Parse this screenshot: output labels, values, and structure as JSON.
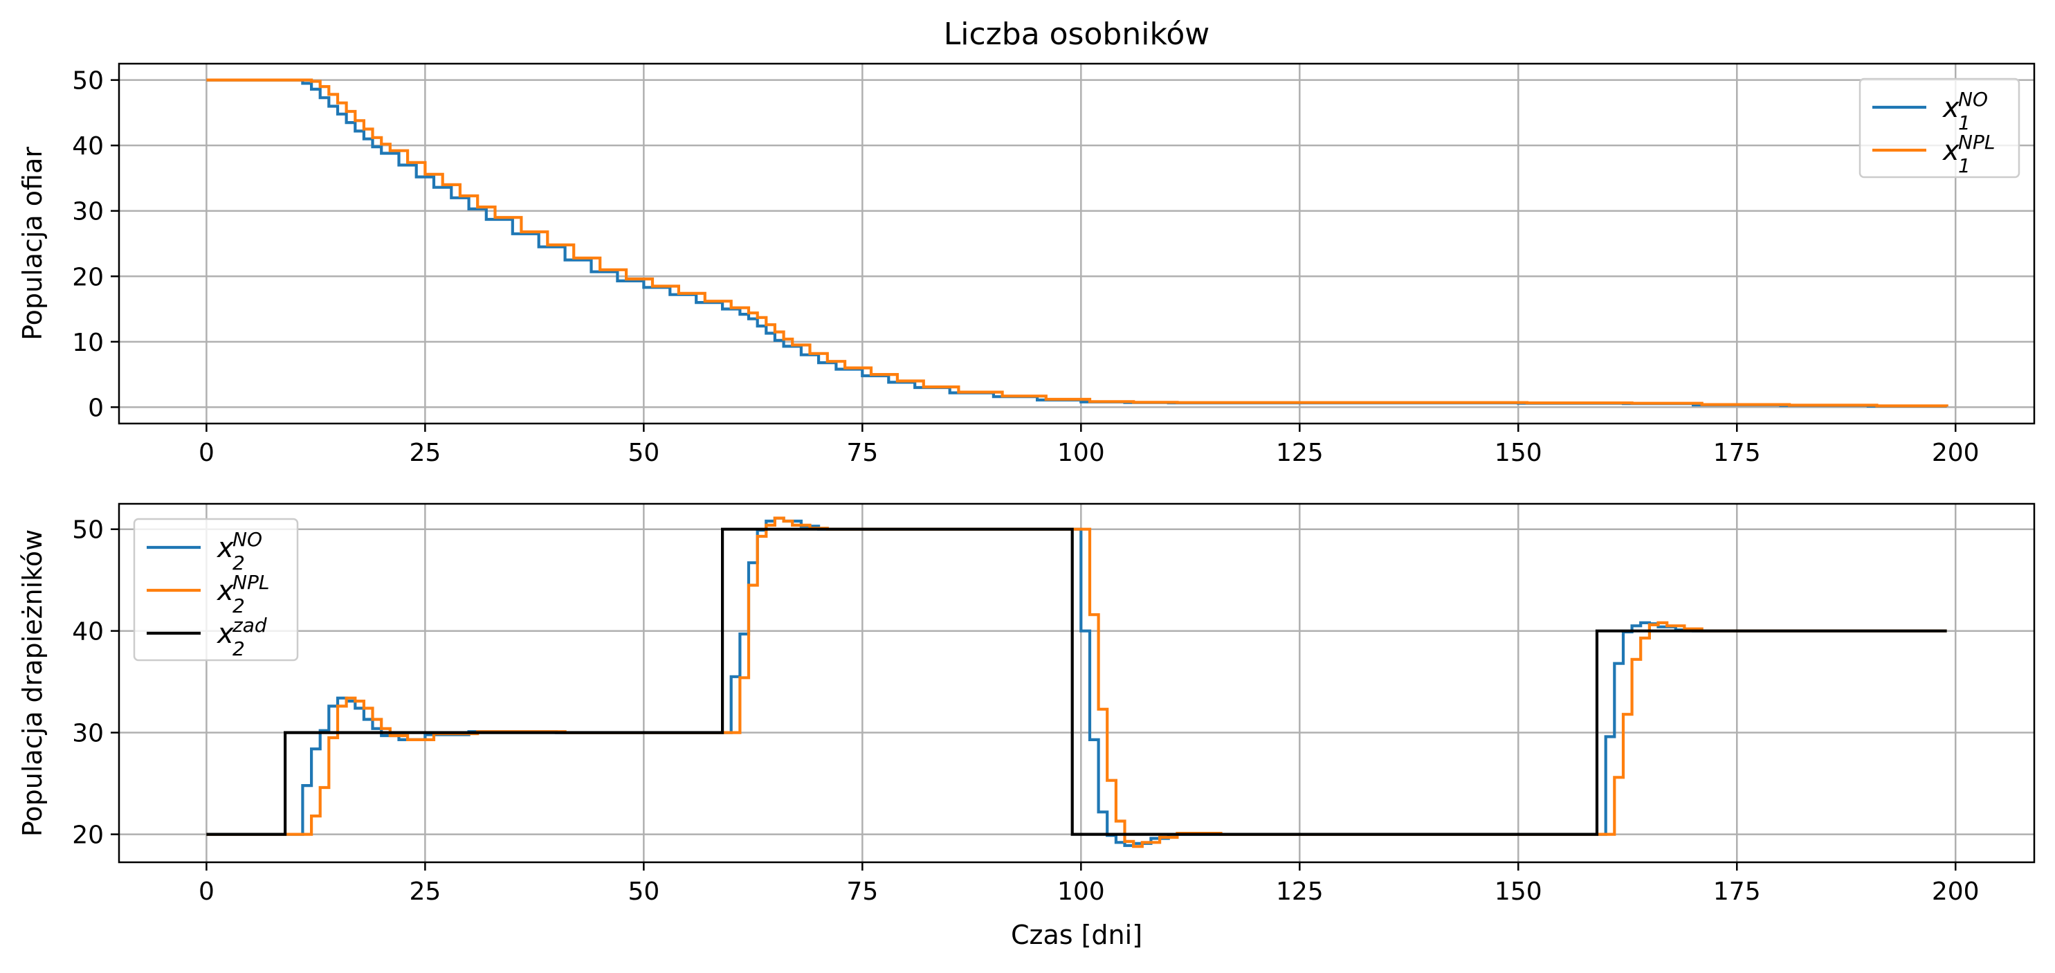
{
  "title": "Liczba osobników",
  "chart_data": [
    {
      "type": "line",
      "step": true,
      "ylabel": "Populacja ofiar",
      "xlabel": "",
      "xlim": [
        -10,
        209
      ],
      "ylim": [
        -2.5,
        52.5
      ],
      "xticks": [
        0,
        25,
        50,
        75,
        100,
        125,
        150,
        175,
        200
      ],
      "yticks": [
        0,
        10,
        20,
        30,
        40,
        50
      ],
      "grid": true,
      "legend_position": "upper right",
      "series": [
        {
          "name": "x_1^{NO}",
          "color": "#1f77b4",
          "x": [
            0,
            10,
            11,
            12,
            13,
            14,
            15,
            16,
            17,
            18,
            19,
            20,
            22,
            24,
            26,
            28,
            30,
            32,
            35,
            38,
            41,
            44,
            47,
            50,
            53,
            56,
            59,
            61,
            62,
            63,
            64,
            65,
            66,
            68,
            70,
            72,
            75,
            78,
            81,
            85,
            90,
            95,
            100,
            105,
            110,
            150,
            162,
            170,
            180,
            190,
            199
          ],
          "y": [
            50,
            50,
            49.5,
            48.6,
            47.3,
            46,
            44.8,
            43.5,
            42.2,
            41,
            39.8,
            38.8,
            37,
            35.2,
            33.6,
            32,
            30.3,
            28.7,
            26.5,
            24.5,
            22.5,
            20.7,
            19.3,
            18.3,
            17.2,
            16,
            15,
            14.2,
            13.5,
            12.4,
            11.3,
            10.2,
            9.3,
            8,
            6.8,
            5.8,
            4.8,
            3.8,
            3,
            2.2,
            1.6,
            1.1,
            0.8,
            0.7,
            0.65,
            0.6,
            0.55,
            0.35,
            0.25,
            0.15,
            0.1
          ]
        },
        {
          "name": "x_1^{NPL}",
          "color": "#ff7f0e",
          "x": [
            0,
            11,
            12,
            13,
            14,
            15,
            16,
            17,
            18,
            19,
            20,
            21,
            23,
            25,
            27,
            29,
            31,
            33,
            36,
            39,
            42,
            45,
            48,
            51,
            54,
            57,
            60,
            62,
            63,
            64,
            65,
            66,
            67,
            69,
            71,
            73,
            76,
            79,
            82,
            86,
            91,
            96,
            101,
            106,
            111,
            151,
            163,
            171,
            181,
            191,
            199
          ],
          "y": [
            50,
            50,
            49.8,
            49,
            47.8,
            46.5,
            45.2,
            43.8,
            42.5,
            41.2,
            40.2,
            39.2,
            37.4,
            35.6,
            34,
            32.3,
            30.6,
            29,
            26.8,
            24.8,
            22.8,
            21,
            19.6,
            18.5,
            17.4,
            16.2,
            15.2,
            14.4,
            13.7,
            12.6,
            11.5,
            10.4,
            9.5,
            8.2,
            7,
            6,
            5,
            4,
            3.1,
            2.3,
            1.7,
            1.2,
            0.85,
            0.75,
            0.7,
            0.65,
            0.6,
            0.4,
            0.3,
            0.2,
            0.1
          ]
        }
      ]
    },
    {
      "type": "line",
      "step": true,
      "ylabel": "Populacja drapieżników",
      "xlabel": "Czas [dni]",
      "xlim": [
        -10,
        209
      ],
      "ylim": [
        17.25,
        52.5
      ],
      "xticks": [
        0,
        25,
        50,
        75,
        100,
        125,
        150,
        175,
        200
      ],
      "yticks": [
        20,
        30,
        40,
        50
      ],
      "grid": true,
      "legend_position": "upper left",
      "series": [
        {
          "name": "x_2^{NO}",
          "color": "#1f77b4",
          "x": [
            0,
            10,
            11,
            12,
            13,
            14,
            15,
            16,
            17,
            18,
            19,
            20,
            22,
            25,
            30,
            40,
            59,
            60,
            61,
            62,
            63,
            64,
            65,
            66,
            68,
            70,
            75,
            99,
            100,
            101,
            102,
            103,
            104,
            105,
            106,
            108,
            110,
            115,
            159,
            160,
            161,
            162,
            163,
            164,
            165,
            166,
            168,
            170,
            175,
            199
          ],
          "y": [
            20,
            20,
            24.8,
            28.4,
            30.2,
            32.6,
            33.4,
            33.1,
            32.4,
            31.3,
            30.4,
            29.7,
            29.3,
            29.8,
            30.1,
            30,
            30,
            35.5,
            39.7,
            46.7,
            49.9,
            50.8,
            51.1,
            50.8,
            50.3,
            50,
            50,
            50,
            40,
            29.3,
            22.2,
            19.9,
            19.2,
            18.9,
            19.1,
            19.6,
            20,
            20,
            20,
            29.6,
            36.8,
            39.9,
            40.5,
            40.8,
            40.7,
            40.4,
            40.1,
            40,
            40,
            40
          ]
        },
        {
          "name": "x_2^{NPL}",
          "color": "#ff7f0e",
          "x": [
            0,
            11,
            12,
            13,
            14,
            15,
            16,
            17,
            18,
            19,
            20,
            21,
            23,
            26,
            31,
            41,
            60,
            61,
            62,
            63,
            64,
            65,
            66,
            67,
            69,
            71,
            76,
            100,
            101,
            102,
            103,
            104,
            105,
            106,
            107,
            109,
            111,
            116,
            160,
            161,
            162,
            163,
            164,
            165,
            166,
            167,
            169,
            171,
            176,
            199
          ],
          "y": [
            20,
            20,
            21.8,
            24.6,
            29.5,
            32.6,
            33.4,
            33.1,
            32.4,
            31.3,
            30.4,
            29.7,
            29.3,
            29.9,
            30.1,
            30,
            30,
            35.4,
            44.5,
            49.3,
            50.4,
            51.1,
            50.8,
            50.4,
            50.1,
            50,
            50,
            50,
            41.6,
            32.3,
            25.3,
            21.3,
            19.3,
            18.8,
            19.2,
            19.7,
            20.1,
            20,
            20,
            25.6,
            31.8,
            37.2,
            39.3,
            40.6,
            40.8,
            40.5,
            40.2,
            40,
            40,
            40
          ]
        },
        {
          "name": "x_2^{zad}",
          "color": "#000000",
          "x": [
            0,
            9,
            59,
            99,
            159,
            199
          ],
          "y": [
            20,
            30,
            50,
            20,
            40,
            40
          ]
        }
      ]
    }
  ]
}
